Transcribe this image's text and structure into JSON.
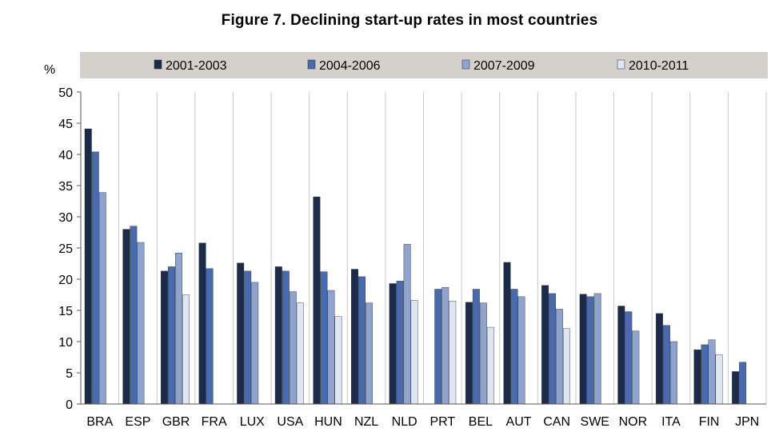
{
  "chart_data": {
    "type": "bar",
    "title": "Figure 7.  Declining start-up rates in most countries",
    "ylabel": "%",
    "xlabel": "",
    "ylim": [
      0,
      50
    ],
    "yticks": [
      "0",
      "5",
      "10",
      "15",
      "20",
      "25",
      "30",
      "35",
      "40",
      "45",
      "50"
    ],
    "grid": "vertical separators between country groups",
    "legend_position": "top",
    "categories": [
      "BRA",
      "ESP",
      "GBR",
      "FRA",
      "LUX",
      "USA",
      "HUN",
      "NZL",
      "NLD",
      "PRT",
      "BEL",
      "AUT",
      "CAN",
      "SWE",
      "NOR",
      "ITA",
      "FIN",
      "JPN"
    ],
    "series": [
      {
        "name": "2001-2003",
        "color": "#1c2b4a",
        "values": [
          44.1,
          28.0,
          21.3,
          25.8,
          22.6,
          22.0,
          33.2,
          21.6,
          19.3,
          null,
          16.3,
          22.7,
          19.0,
          17.6,
          15.7,
          14.5,
          8.7,
          5.2
        ]
      },
      {
        "name": "2004-2006",
        "color": "#4a6aae",
        "values": [
          40.4,
          28.5,
          22.0,
          21.7,
          21.3,
          21.3,
          21.2,
          20.4,
          19.7,
          18.4,
          18.4,
          18.4,
          17.7,
          17.2,
          14.8,
          12.6,
          9.5,
          6.7
        ]
      },
      {
        "name": "2007-2009",
        "color": "#8ea4cf",
        "values": [
          33.9,
          25.9,
          24.2,
          null,
          19.5,
          18.0,
          18.2,
          16.2,
          25.6,
          18.7,
          16.2,
          17.2,
          15.2,
          17.7,
          11.7,
          10.0,
          10.3,
          null
        ]
      },
      {
        "name": "2010-2011",
        "color": "#dfe6f3",
        "values": [
          null,
          null,
          17.5,
          null,
          null,
          16.2,
          14.0,
          null,
          16.6,
          16.5,
          12.3,
          null,
          12.1,
          null,
          null,
          null,
          7.9,
          null
        ]
      }
    ]
  }
}
